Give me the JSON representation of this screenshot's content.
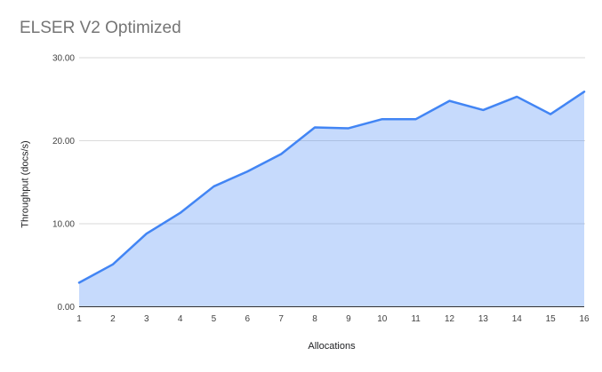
{
  "page": {
    "background": "#ffffff"
  },
  "chart_data": {
    "type": "area",
    "title": "ELSER V2 Optimized",
    "xlabel": "Allocations",
    "ylabel": "Throughput (docs/s)",
    "x": [
      1,
      2,
      3,
      4,
      5,
      6,
      7,
      8,
      9,
      10,
      11,
      12,
      13,
      14,
      15,
      16
    ],
    "values": [
      2.9,
      5.1,
      8.8,
      11.3,
      14.5,
      16.3,
      18.4,
      21.6,
      21.5,
      22.6,
      22.6,
      24.8,
      23.7,
      25.3,
      23.2,
      25.9
    ],
    "xtick_labels": [
      "1",
      "2",
      "3",
      "4",
      "5",
      "6",
      "7",
      "8",
      "9",
      "10",
      "11",
      "12",
      "13",
      "14",
      "15",
      "16"
    ],
    "yticks": [
      {
        "value": 0,
        "label": "0.00"
      },
      {
        "value": 10,
        "label": "10.00"
      },
      {
        "value": 20,
        "label": "20.00"
      },
      {
        "value": 30,
        "label": "30.00"
      }
    ],
    "ylim": [
      0,
      30
    ],
    "grid": "horizontal",
    "legend": "none",
    "colors": {
      "line": "#4285f4",
      "fill": "rgba(66,133,244,0.30)",
      "gridline": "#dadada",
      "axis_line": "#333333",
      "tick_text": "#424242",
      "title_text": "#757575",
      "axis_title_text": "#202124"
    }
  }
}
